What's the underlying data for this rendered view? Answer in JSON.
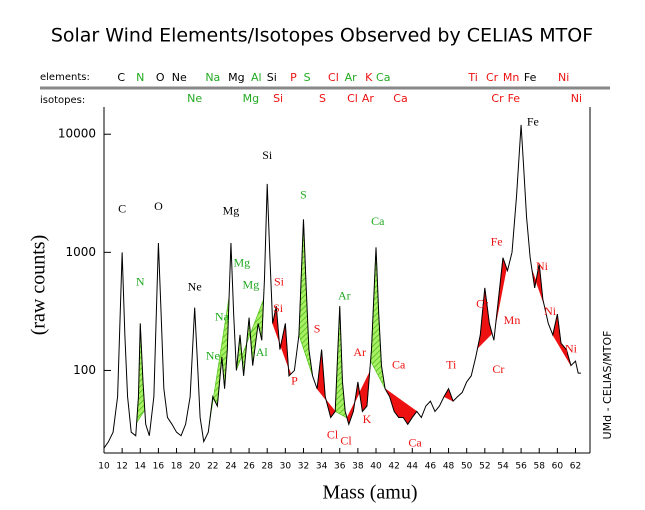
{
  "chart_data": {
    "type": "line",
    "title": "Solar Wind Elements/Isotopes Observed by CELIAS MTOF",
    "xlabel": "Mass  (amu)",
    "ylabel": "(raw counts)",
    "credit": "UMd - CELIAS/MTOF",
    "element_row_label": "elements:",
    "isotope_row_label": "isotopes:",
    "ylog": true,
    "xlim": [
      10,
      63.6
    ],
    "ylim": [
      20,
      17000
    ],
    "xticks": [
      10,
      12,
      14,
      16,
      18,
      20,
      22,
      24,
      26,
      28,
      30,
      32,
      34,
      36,
      38,
      40,
      42,
      44,
      46,
      48,
      50,
      52,
      54,
      56,
      58,
      60,
      62
    ],
    "yticks": [
      100,
      1000,
      10000
    ],
    "x": [
      10,
      10.5,
      11,
      11.5,
      12,
      12.3,
      12.6,
      13,
      13.5,
      13.8,
      14,
      14.3,
      14.6,
      15,
      15.5,
      16,
      16.3,
      16.6,
      17,
      17.5,
      18,
      18.5,
      19,
      19.5,
      20,
      20.3,
      20.6,
      21,
      21.5,
      22,
      22.5,
      23,
      23.3,
      23.6,
      24,
      24.3,
      24.6,
      25,
      25.4,
      26,
      26.4,
      27,
      27.4,
      27.7,
      28,
      28.3,
      28.6,
      29,
      29.4,
      30,
      30.4,
      31,
      31.5,
      32,
      32.3,
      32.6,
      33,
      33.5,
      34,
      34.4,
      35,
      35.5,
      36,
      36.3,
      36.6,
      37,
      37.5,
      38,
      38.5,
      39,
      39.5,
      40,
      40.3,
      40.6,
      41,
      41.5,
      42,
      42.5,
      43,
      43.5,
      44,
      44.5,
      45,
      45.5,
      46,
      46.5,
      47,
      47.5,
      48,
      48.5,
      49,
      49.5,
      50,
      50.5,
      51,
      51.5,
      52,
      52.5,
      53,
      53.5,
      54,
      54.5,
      55,
      55.5,
      56,
      56.3,
      56.6,
      57,
      57.5,
      58,
      58.4,
      59,
      59.5,
      60,
      60.4,
      61,
      61.5,
      62,
      62.3,
      62.6
    ],
    "series": [
      {
        "color": "#000000",
        "values": [
          22,
          25,
          30,
          60,
          1000,
          200,
          60,
          30,
          28,
          60,
          250,
          80,
          35,
          28,
          60,
          1200,
          300,
          70,
          40,
          35,
          30,
          28,
          35,
          60,
          340,
          120,
          40,
          25,
          30,
          60,
          50,
          130,
          70,
          150,
          1200,
          300,
          100,
          200,
          90,
          280,
          110,
          250,
          180,
          600,
          3800,
          900,
          250,
          350,
          150,
          250,
          90,
          100,
          200,
          1900,
          500,
          150,
          90,
          70,
          150,
          60,
          40,
          45,
          350,
          80,
          45,
          35,
          45,
          80,
          45,
          50,
          150,
          1100,
          300,
          110,
          70,
          60,
          45,
          40,
          40,
          35,
          40,
          45,
          40,
          50,
          55,
          45,
          50,
          60,
          70,
          55,
          60,
          65,
          80,
          90,
          130,
          200,
          500,
          250,
          180,
          400,
          900,
          700,
          1000,
          3000,
          12000,
          5000,
          2000,
          900,
          500,
          800,
          400,
          250,
          200,
          300,
          170,
          150,
          110,
          120,
          95,
          95
        ]
      }
    ],
    "highlights": [
      {
        "from": 13.6,
        "to": 14.5,
        "color": "#66dd22"
      },
      {
        "from": 21.6,
        "to": 23.8,
        "color": "#66dd22"
      },
      {
        "from": 24.6,
        "to": 27.6,
        "color": "#66dd22"
      },
      {
        "from": 31.5,
        "to": 33.0,
        "color": "#66dd22"
      },
      {
        "from": 35.5,
        "to": 36.8,
        "color": "#66dd22"
      },
      {
        "from": 39.4,
        "to": 41.0,
        "color": "#66dd22"
      },
      {
        "from": 28.6,
        "to": 30.6,
        "color": "#ee1111"
      },
      {
        "from": 33.5,
        "to": 35.5,
        "color": "#ee1111"
      },
      {
        "from": 36.8,
        "to": 39.3,
        "color": "#ee1111"
      },
      {
        "from": 41.0,
        "to": 44.5,
        "color": "#ee1111"
      },
      {
        "from": 47.5,
        "to": 48.5,
        "color": "#ee1111"
      },
      {
        "from": 51.2,
        "to": 52.8,
        "color": "#ee1111"
      },
      {
        "from": 53.2,
        "to": 54.4,
        "color": "#ee1111"
      },
      {
        "from": 57.2,
        "to": 58.5,
        "color": "#ee1111"
      },
      {
        "from": 59.5,
        "to": 61.5,
        "color": "#ee1111"
      }
    ],
    "element_labels": [
      {
        "text": "C",
        "x": 11.9,
        "color": "#000000"
      },
      {
        "text": "N",
        "x": 14.0,
        "color": "#22aa22"
      },
      {
        "text": "O",
        "x": 16.2,
        "color": "#000000"
      },
      {
        "text": "Ne",
        "x": 18.3,
        "color": "#000000"
      },
      {
        "text": "Na",
        "x": 22.0,
        "color": "#22aa22"
      },
      {
        "text": "Mg",
        "x": 24.6,
        "color": "#000000"
      },
      {
        "text": "Al",
        "x": 26.8,
        "color": "#22aa22"
      },
      {
        "text": "Si",
        "x": 28.5,
        "color": "#000000"
      },
      {
        "text": "P",
        "x": 30.9,
        "color": "#ee1111"
      },
      {
        "text": "S",
        "x": 32.4,
        "color": "#22aa22"
      },
      {
        "text": "Cl",
        "x": 35.3,
        "color": "#ee1111"
      },
      {
        "text": "Ar",
        "x": 37.2,
        "color": "#22aa22"
      },
      {
        "text": "K",
        "x": 39.2,
        "color": "#ee1111"
      },
      {
        "text": "Ca",
        "x": 40.8,
        "color": "#22aa22"
      },
      {
        "text": "Ti",
        "x": 50.7,
        "color": "#ee1111"
      },
      {
        "text": "Cr",
        "x": 52.8,
        "color": "#ee1111"
      },
      {
        "text": "Mn",
        "x": 54.9,
        "color": "#ee1111"
      },
      {
        "text": "Fe",
        "x": 57.0,
        "color": "#000000"
      },
      {
        "text": "Ni",
        "x": 60.7,
        "color": "#ee1111"
      }
    ],
    "isotope_labels": [
      {
        "text": "Ne",
        "x": 20.0,
        "color": "#22aa22"
      },
      {
        "text": "Mg",
        "x": 26.2,
        "color": "#22aa22"
      },
      {
        "text": "Si",
        "x": 29.2,
        "color": "#ee1111"
      },
      {
        "text": "S",
        "x": 34.1,
        "color": "#ee1111"
      },
      {
        "text": "Cl",
        "x": 37.4,
        "color": "#ee1111"
      },
      {
        "text": "Ar",
        "x": 39.1,
        "color": "#ee1111"
      },
      {
        "text": "Ca",
        "x": 42.7,
        "color": "#ee1111"
      },
      {
        "text": "Cr",
        "x": 53.4,
        "color": "#ee1111"
      },
      {
        "text": "Fe",
        "x": 55.2,
        "color": "#ee1111"
      },
      {
        "text": "Ni",
        "x": 62.1,
        "color": "#ee1111"
      }
    ],
    "annotations": [
      {
        "text": "C",
        "x": 12,
        "y": 2300,
        "color": "#000000"
      },
      {
        "text": "O",
        "x": 16,
        "y": 2400,
        "color": "#000000"
      },
      {
        "text": "Ne",
        "x": 20,
        "y": 500,
        "color": "#000000"
      },
      {
        "text": "Mg",
        "x": 24,
        "y": 2200,
        "color": "#000000"
      },
      {
        "text": "Si",
        "x": 28,
        "y": 6500,
        "color": "#000000"
      },
      {
        "text": "Fe",
        "x": 57.3,
        "y": 12500,
        "color": "#000000"
      },
      {
        "text": "N",
        "x": 14,
        "y": 550,
        "color": "#22aa22"
      },
      {
        "text": "Na",
        "x": 23,
        "y": 280,
        "color": "#22aa22"
      },
      {
        "text": "Ne",
        "x": 22,
        "y": 130,
        "color": "#22aa22"
      },
      {
        "text": "Mg",
        "x": 25.2,
        "y": 800,
        "color": "#22aa22"
      },
      {
        "text": "Mg",
        "x": 26.2,
        "y": 520,
        "color": "#22aa22"
      },
      {
        "text": "Al",
        "x": 27.4,
        "y": 140,
        "color": "#22aa22"
      },
      {
        "text": "S",
        "x": 32,
        "y": 3000,
        "color": "#22aa22"
      },
      {
        "text": "Ar",
        "x": 36.5,
        "y": 420,
        "color": "#22aa22"
      },
      {
        "text": "Ca",
        "x": 40.2,
        "y": 1800,
        "color": "#22aa22"
      },
      {
        "text": "Si",
        "x": 29.3,
        "y": 550,
        "color": "#ee1111"
      },
      {
        "text": "Si",
        "x": 29.2,
        "y": 330,
        "color": "#ee1111"
      },
      {
        "text": "P",
        "x": 31,
        "y": 80,
        "color": "#ee1111"
      },
      {
        "text": "S",
        "x": 33.5,
        "y": 220,
        "color": "#ee1111"
      },
      {
        "text": "Ar",
        "x": 38.2,
        "y": 140,
        "color": "#ee1111"
      },
      {
        "text": "Cl",
        "x": 35.2,
        "y": 28,
        "color": "#ee1111"
      },
      {
        "text": "Cl",
        "x": 36.7,
        "y": 25,
        "color": "#ee1111"
      },
      {
        "text": "K",
        "x": 39,
        "y": 38,
        "color": "#ee1111"
      },
      {
        "text": "Ca",
        "x": 42.5,
        "y": 110,
        "color": "#ee1111"
      },
      {
        "text": "Ca",
        "x": 44.3,
        "y": 24,
        "color": "#ee1111"
      },
      {
        "text": "Ti",
        "x": 48.3,
        "y": 110,
        "color": "#ee1111"
      },
      {
        "text": "Cr",
        "x": 51.7,
        "y": 360,
        "color": "#ee1111"
      },
      {
        "text": "Cr",
        "x": 53.5,
        "y": 100,
        "color": "#ee1111"
      },
      {
        "text": "Fe",
        "x": 53.3,
        "y": 1200,
        "color": "#ee1111"
      },
      {
        "text": "Mn",
        "x": 55,
        "y": 260,
        "color": "#ee1111"
      },
      {
        "text": "Ni",
        "x": 58.3,
        "y": 750,
        "color": "#ee1111"
      },
      {
        "text": "Ni",
        "x": 59.2,
        "y": 310,
        "color": "#ee1111"
      },
      {
        "text": "Ni",
        "x": 61.5,
        "y": 150,
        "color": "#ee1111"
      }
    ]
  }
}
